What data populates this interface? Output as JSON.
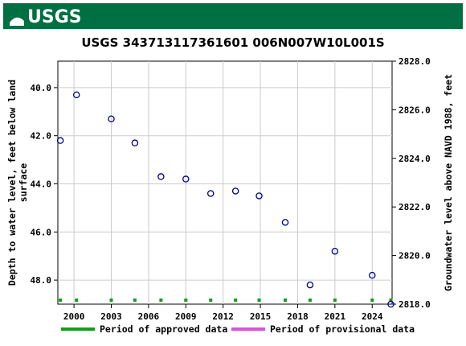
{
  "header": {
    "logo_text": "USGS",
    "brand_color": "#006f41"
  },
  "chart_data": {
    "type": "scatter",
    "title": "USGS 343713117361601 006N007W10L001S",
    "ylabel_left_line1": "Depth to water level, feet below land",
    "ylabel_left_line2": "surface",
    "ylabel_right": "Groundwater level above NAVD 1988, feet",
    "x_ticks": [
      "2000",
      "2003",
      "2006",
      "2009",
      "2012",
      "2015",
      "2018",
      "2021",
      "2024"
    ],
    "y_left_ticks": [
      "40.0",
      "42.0",
      "44.0",
      "46.0",
      "48.0"
    ],
    "y_right_ticks": [
      "2828.0",
      "2826.0",
      "2824.0",
      "2822.0",
      "2820.0",
      "2818.0"
    ],
    "xlim": [
      1998.7,
      2025.6
    ],
    "ylim_left": [
      38.9,
      49.0
    ],
    "ylim_right": [
      2818.0,
      2828.0
    ],
    "y_left_inverted": true,
    "grid": true,
    "marker_color": "#00008b",
    "approved_color": "#1a9a1a",
    "provisional_color": "#d555d5",
    "series": [
      {
        "name": "Depth to water level",
        "points": [
          {
            "x": 1998.9,
            "y": 42.2
          },
          {
            "x": 2000.2,
            "y": 40.3
          },
          {
            "x": 2003.0,
            "y": 41.3
          },
          {
            "x": 2004.9,
            "y": 42.3
          },
          {
            "x": 2007.0,
            "y": 43.7
          },
          {
            "x": 2009.0,
            "y": 43.8
          },
          {
            "x": 2011.0,
            "y": 44.4
          },
          {
            "x": 2013.0,
            "y": 44.3
          },
          {
            "x": 2014.9,
            "y": 44.5
          },
          {
            "x": 2017.0,
            "y": 45.6
          },
          {
            "x": 2019.0,
            "y": 48.2
          },
          {
            "x": 2021.0,
            "y": 46.8
          },
          {
            "x": 2024.0,
            "y": 47.8
          },
          {
            "x": 2025.5,
            "y": 49.0
          }
        ]
      }
    ],
    "approved_period_marks": [
      1998.9,
      2000.2,
      2003.0,
      2004.9,
      2007.0,
      2009.0,
      2011.0,
      2013.0,
      2014.9,
      2017.0,
      2019.0,
      2021.0,
      2024.0,
      2025.5
    ],
    "legend": {
      "position": "bottom",
      "items": [
        {
          "label": "Period of approved data",
          "color": "#1a9a1a"
        },
        {
          "label": "Period of provisional data",
          "color": "#d555d5"
        }
      ]
    }
  }
}
